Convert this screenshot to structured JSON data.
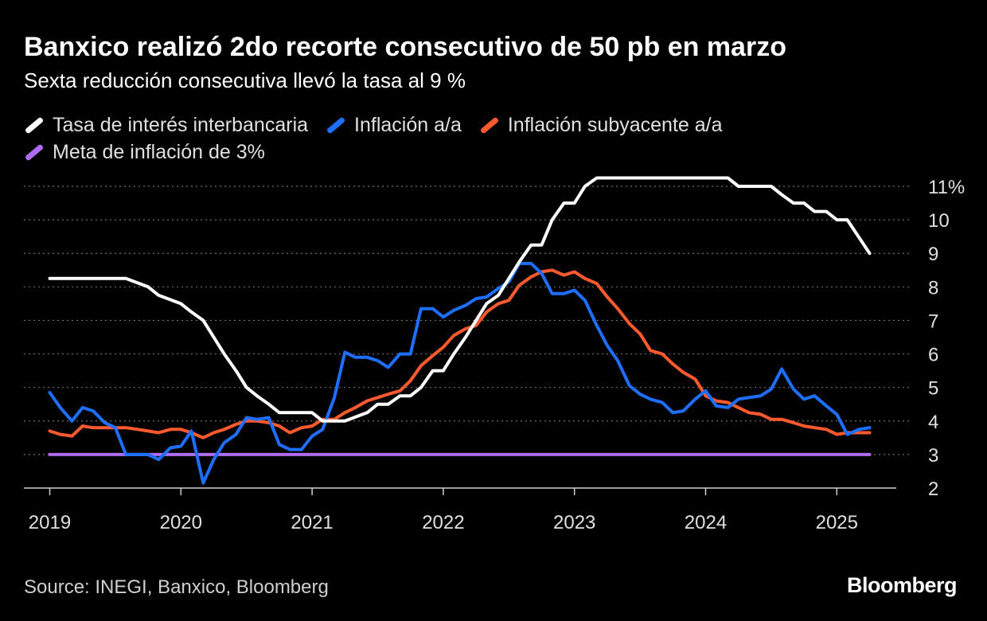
{
  "title": "Banxico realizó 2do recorte consecutivo de 50 pb en marzo",
  "subtitle": "Sexta reducción consecutiva llevó la tasa al 9 %",
  "source": "Source: INEGI, Banxico, Bloomberg",
  "brand": "Bloomberg",
  "legend": [
    {
      "label": "Tasa de interés interbancaria",
      "color": "#ffffff"
    },
    {
      "label": "Inflación a/a",
      "color": "#1f6fff"
    },
    {
      "label": "Inflación subyacente a/a",
      "color": "#ff5a2e"
    },
    {
      "label": "Meta de inflación de 3%",
      "color": "#b06cf0"
    }
  ],
  "chart_data": {
    "type": "line",
    "xlim": [
      2019.0,
      2025.45
    ],
    "ylim": [
      2,
      11
    ],
    "y_ticks": [
      2,
      3,
      4,
      5,
      6,
      7,
      8,
      9,
      10,
      11
    ],
    "y_tick_labels": [
      "2",
      "3",
      "4",
      "5",
      "6",
      "7",
      "8",
      "9",
      "10",
      "11%"
    ],
    "x_ticks": [
      2019,
      2020,
      2021,
      2022,
      2023,
      2024,
      2025
    ],
    "x_tick_labels": [
      "2019",
      "2020",
      "2021",
      "2022",
      "2023",
      "2024",
      "2025"
    ],
    "grid": "horizontal dotted",
    "series": [
      {
        "name": "Tasa de interés interbancaria",
        "color": "#ffffff",
        "x": [
          2019.0,
          2019.58,
          2019.75,
          2019.83,
          2020.0,
          2020.08,
          2020.17,
          2020.25,
          2020.33,
          2020.42,
          2020.5,
          2020.58,
          2020.67,
          2020.75,
          2020.83,
          2020.92,
          2021.0,
          2021.08,
          2021.17,
          2021.25,
          2021.42,
          2021.5,
          2021.58,
          2021.67,
          2021.75,
          2021.83,
          2021.92,
          2022.0,
          2022.08,
          2022.17,
          2022.25,
          2022.33,
          2022.42,
          2022.5,
          2022.58,
          2022.67,
          2022.75,
          2022.83,
          2022.92,
          2023.0,
          2023.08,
          2023.17,
          2023.25,
          2024.17,
          2024.25,
          2024.5,
          2024.58,
          2024.67,
          2024.75,
          2024.83,
          2024.92,
          2025.0,
          2025.08,
          2025.25
        ],
        "y": [
          8.25,
          8.25,
          8.0,
          7.75,
          7.5,
          7.25,
          7.0,
          6.5,
          6.0,
          5.5,
          5.0,
          4.75,
          4.5,
          4.25,
          4.25,
          4.25,
          4.25,
          4.0,
          4.0,
          4.0,
          4.25,
          4.5,
          4.5,
          4.75,
          4.75,
          5.0,
          5.5,
          5.5,
          6.0,
          6.5,
          7.0,
          7.5,
          7.75,
          8.25,
          8.75,
          9.25,
          9.25,
          10.0,
          10.5,
          10.5,
          11.0,
          11.25,
          11.25,
          11.25,
          11.0,
          11.0,
          10.75,
          10.5,
          10.5,
          10.25,
          10.25,
          10.0,
          10.0,
          9.0
        ]
      },
      {
        "name": "Inflación a/a",
        "color": "#1f6fff",
        "x": [
          2019.0,
          2019.08,
          2019.17,
          2019.25,
          2019.33,
          2019.42,
          2019.5,
          2019.58,
          2019.67,
          2019.75,
          2019.83,
          2019.92,
          2020.0,
          2020.08,
          2020.17,
          2020.25,
          2020.33,
          2020.42,
          2020.5,
          2020.58,
          2020.67,
          2020.75,
          2020.83,
          2020.92,
          2021.0,
          2021.08,
          2021.17,
          2021.25,
          2021.33,
          2021.42,
          2021.5,
          2021.58,
          2021.67,
          2021.75,
          2021.83,
          2021.92,
          2022.0,
          2022.08,
          2022.17,
          2022.25,
          2022.33,
          2022.42,
          2022.5,
          2022.58,
          2022.67,
          2022.75,
          2022.83,
          2022.92,
          2023.0,
          2023.08,
          2023.17,
          2023.25,
          2023.33,
          2023.42,
          2023.5,
          2023.58,
          2023.67,
          2023.75,
          2023.83,
          2023.92,
          2024.0,
          2024.08,
          2024.17,
          2024.25,
          2024.33,
          2024.42,
          2024.5,
          2024.58,
          2024.67,
          2024.75,
          2024.83,
          2024.92,
          2025.0,
          2025.08,
          2025.17,
          2025.25
        ],
        "y": [
          4.85,
          4.4,
          4.0,
          4.4,
          4.3,
          3.95,
          3.8,
          3.0,
          3.0,
          3.0,
          2.85,
          3.2,
          3.25,
          3.7,
          2.15,
          2.85,
          3.35,
          3.6,
          4.1,
          4.05,
          4.1,
          3.3,
          3.15,
          3.15,
          3.55,
          3.75,
          4.7,
          6.05,
          5.9,
          5.9,
          5.8,
          5.6,
          6.0,
          6.0,
          7.35,
          7.35,
          7.1,
          7.3,
          7.45,
          7.65,
          7.7,
          7.95,
          8.15,
          8.7,
          8.7,
          8.4,
          7.8,
          7.8,
          7.9,
          7.6,
          6.85,
          6.25,
          5.8,
          5.05,
          4.8,
          4.65,
          4.55,
          4.25,
          4.3,
          4.65,
          4.9,
          4.45,
          4.4,
          4.65,
          4.7,
          4.75,
          4.95,
          5.55,
          4.95,
          4.65,
          4.75,
          4.45,
          4.2,
          3.6,
          3.75,
          3.8
        ]
      },
      {
        "name": "Inflación subyacente a/a",
        "color": "#ff5a2e",
        "x": [
          2019.0,
          2019.08,
          2019.17,
          2019.25,
          2019.33,
          2019.42,
          2019.5,
          2019.58,
          2019.67,
          2019.75,
          2019.83,
          2019.92,
          2020.0,
          2020.08,
          2020.17,
          2020.25,
          2020.33,
          2020.42,
          2020.5,
          2020.58,
          2020.67,
          2020.75,
          2020.83,
          2020.92,
          2021.0,
          2021.08,
          2021.17,
          2021.25,
          2021.33,
          2021.42,
          2021.5,
          2021.58,
          2021.67,
          2021.75,
          2021.83,
          2021.92,
          2022.0,
          2022.08,
          2022.17,
          2022.25,
          2022.33,
          2022.42,
          2022.5,
          2022.58,
          2022.67,
          2022.75,
          2022.83,
          2022.92,
          2023.0,
          2023.08,
          2023.17,
          2023.25,
          2023.33,
          2023.42,
          2023.5,
          2023.58,
          2023.67,
          2023.75,
          2023.83,
          2023.92,
          2024.0,
          2024.08,
          2024.17,
          2024.25,
          2024.33,
          2024.42,
          2024.5,
          2024.58,
          2024.67,
          2024.75,
          2024.83,
          2024.92,
          2025.0,
          2025.08,
          2025.17,
          2025.25
        ],
        "y": [
          3.7,
          3.6,
          3.55,
          3.85,
          3.8,
          3.8,
          3.8,
          3.8,
          3.75,
          3.7,
          3.65,
          3.75,
          3.75,
          3.65,
          3.5,
          3.65,
          3.75,
          3.9,
          4.0,
          4.0,
          3.95,
          3.85,
          3.65,
          3.8,
          3.85,
          4.05,
          4.05,
          4.25,
          4.4,
          4.6,
          4.7,
          4.8,
          4.9,
          5.2,
          5.65,
          5.95,
          6.2,
          6.55,
          6.75,
          6.85,
          7.25,
          7.5,
          7.6,
          8.05,
          8.3,
          8.45,
          8.5,
          8.35,
          8.45,
          8.25,
          8.1,
          7.7,
          7.35,
          6.9,
          6.6,
          6.1,
          6.0,
          5.7,
          5.45,
          5.25,
          4.75,
          4.6,
          4.55,
          4.4,
          4.25,
          4.2,
          4.05,
          4.05,
          3.95,
          3.85,
          3.8,
          3.75,
          3.6,
          3.65,
          3.65,
          3.65
        ]
      },
      {
        "name": "Meta de inflación de 3%",
        "color": "#b06cf0",
        "x": [
          2019.0,
          2025.25
        ],
        "y": [
          3.0,
          3.0
        ]
      }
    ]
  }
}
